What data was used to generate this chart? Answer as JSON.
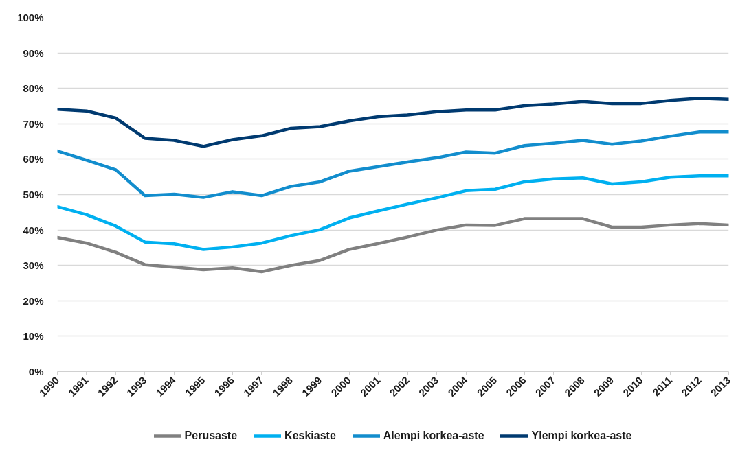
{
  "chart_data": {
    "type": "line",
    "categories": [
      "1990",
      "1991",
      "1992",
      "1993",
      "1994",
      "1995",
      "1996",
      "1997",
      "1998",
      "1999",
      "2000",
      "2001",
      "2002",
      "2003",
      "2004",
      "2005",
      "2006",
      "2007",
      "2008",
      "2009",
      "2010",
      "2011",
      "2012",
      "2013"
    ],
    "series": [
      {
        "name": "Perusaste",
        "color": "#808080",
        "values": [
          37.9,
          36.3,
          33.7,
          30.2,
          29.5,
          28.8,
          29.3,
          28.2,
          30.0,
          31.4,
          34.5,
          36.2,
          38.0,
          40.0,
          41.4,
          41.3,
          43.2,
          43.2,
          43.2,
          40.8,
          40.8,
          41.4,
          41.8,
          41.4
        ]
      },
      {
        "name": "Keskiaste",
        "color": "#00b0f0",
        "values": [
          46.6,
          44.3,
          41.1,
          36.6,
          36.1,
          34.5,
          35.2,
          36.3,
          38.4,
          40.1,
          43.4,
          45.4,
          47.3,
          49.1,
          51.1,
          51.5,
          53.6,
          54.4,
          54.7,
          53.0,
          53.6,
          54.9,
          55.3,
          55.3
        ]
      },
      {
        "name": "Alempi korkea-aste",
        "color": "#128dcd",
        "values": [
          62.3,
          59.7,
          57.0,
          49.7,
          50.1,
          49.2,
          50.8,
          49.7,
          52.3,
          53.6,
          56.6,
          57.9,
          59.2,
          60.4,
          62.0,
          61.7,
          63.8,
          64.5,
          65.3,
          64.2,
          65.1,
          66.5,
          67.7,
          67.7
        ]
      },
      {
        "name": "Ylempi korkea-aste",
        "color": "#003a70",
        "values": [
          74.1,
          73.6,
          71.6,
          65.9,
          65.3,
          63.6,
          65.5,
          66.6,
          68.7,
          69.2,
          70.8,
          72.0,
          72.5,
          73.4,
          73.9,
          73.9,
          75.1,
          75.6,
          76.3,
          75.7,
          75.7,
          76.6,
          77.2,
          76.9
        ]
      }
    ],
    "ylim": [
      0,
      100
    ],
    "yticks": [
      {
        "value": 0,
        "label": "0%"
      },
      {
        "value": 10,
        "label": "10%"
      },
      {
        "value": 20,
        "label": "20%"
      },
      {
        "value": 30,
        "label": "30%"
      },
      {
        "value": 40,
        "label": "40%"
      },
      {
        "value": 50,
        "label": "50%"
      },
      {
        "value": 60,
        "label": "60%"
      },
      {
        "value": 70,
        "label": "70%"
      },
      {
        "value": 80,
        "label": "80%"
      },
      {
        "value": 90,
        "label": "90%"
      },
      {
        "value": 100,
        "label": "100%"
      }
    ],
    "grid": "y",
    "legend": "bottom",
    "line_style": "solid"
  }
}
